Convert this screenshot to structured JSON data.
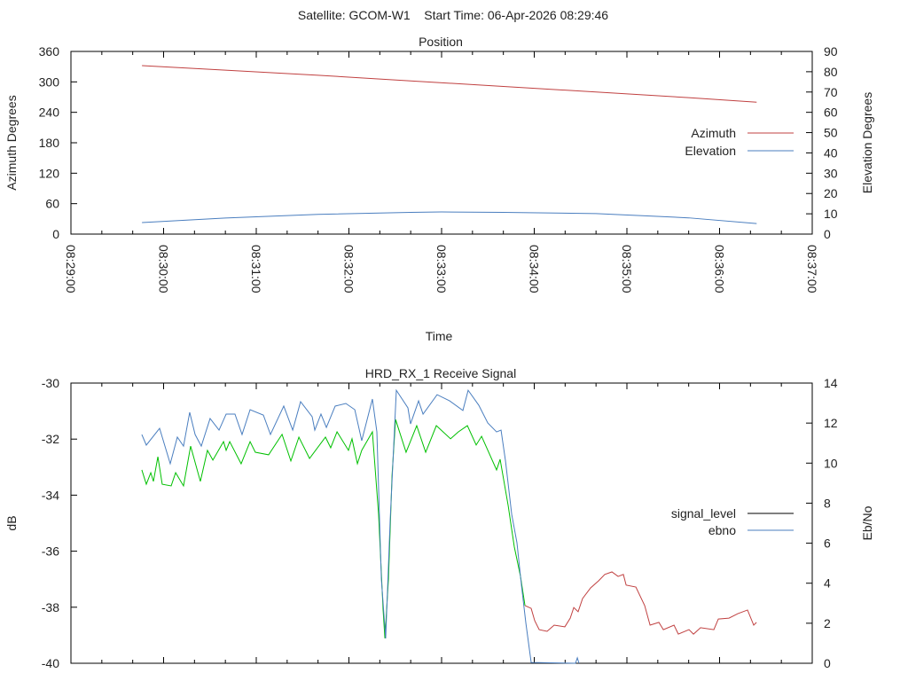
{
  "header": {
    "title": "Satellite: GCOM-W1    Start Time: 06-Apr-2026 08:29:46"
  },
  "chart_data": [
    {
      "type": "line",
      "title": "Position",
      "xlabel": "Time",
      "ylabel": "Azimuth Degrees",
      "y2label": "Elevation Degrees",
      "xlim_seconds_after_08_29_00": [
        0,
        480
      ],
      "x_ticks": [
        "08:29:00",
        "08:30:00",
        "08:31:00",
        "08:32:00",
        "08:33:00",
        "08:34:00",
        "08:35:00",
        "08:36:00",
        "08:37:00"
      ],
      "ylim": [
        0,
        360
      ],
      "y_ticks": [
        "0",
        "60",
        "120",
        "180",
        "240",
        "300",
        "360"
      ],
      "y2lim": [
        0,
        90
      ],
      "y2_ticks": [
        "0",
        "10",
        "20",
        "30",
        "40",
        "50",
        "60",
        "70",
        "80",
        "90"
      ],
      "legend_position": "right",
      "series": [
        {
          "name": "Azimuth",
          "axis": "y1",
          "color": "#c04040",
          "x": [
            46,
            100,
            160,
            220,
            280,
            340,
            400,
            444
          ],
          "y": [
            332,
            323,
            313,
            302,
            291,
            280,
            269,
            260
          ]
        },
        {
          "name": "Elevation",
          "axis": "y2",
          "color": "#4a7ebf",
          "x": [
            46,
            100,
            160,
            220,
            240,
            280,
            340,
            400,
            444
          ],
          "y": [
            5.7,
            7.9,
            9.7,
            10.7,
            10.9,
            10.7,
            10.1,
            8.0,
            5.2
          ]
        }
      ]
    },
    {
      "type": "line",
      "title": "HRD_RX_1 Receive Signal",
      "ylabel": "dB",
      "y2label": "Eb/No",
      "xlim_seconds_after_08_29_00": [
        0,
        480
      ],
      "ylim": [
        -40,
        -30
      ],
      "y_ticks": [
        "-40",
        "-38",
        "-36",
        "-34",
        "-32",
        "-30"
      ],
      "y2lim": [
        0,
        14
      ],
      "y2_ticks": [
        "0",
        "2",
        "4",
        "6",
        "8",
        "10",
        "12",
        "14"
      ],
      "legend_position": "right",
      "series": [
        {
          "name": "signal_level",
          "axis": "y1",
          "legend_color": "#000000",
          "color": "#00c000",
          "tail_color": "#c04040",
          "tail_from": 294,
          "x": [
            45.9,
            48.8,
            51.7,
            53.4,
            56.3,
            59.1,
            64.9,
            67.8,
            72.9,
            77.5,
            83.8,
            88.4,
            91.9,
            98.8,
            100.5,
            102.8,
            110.2,
            116.0,
            119.4,
            128.0,
            136.7,
            142.4,
            147.6,
            154.5,
            164.8,
            168.2,
            172.3,
            179.7,
            182.0,
            185.5,
            188.3,
            195.2,
            199.2,
            202.1,
            203.3,
            205.6,
            207.9,
            210.2,
            217.0,
            223.9,
            229.7,
            236.6,
            245.8,
            250.9,
            256.7,
            262.4,
            265.9,
            275.6,
            277.9,
            283.1,
            287.1,
            291.1,
            294.0,
            298.0,
            300.3,
            303.2,
            308.3,
            312.9,
            319.8,
            323.3,
            325.6,
            328.4,
            331.3,
            336.5,
            341.6,
            345.7,
            350.3,
            354.3,
            357.7,
            359.5,
            365.8,
            371.5,
            375.0,
            380.7,
            383.6,
            390.5,
            393.3,
            400.2,
            403.1,
            407.7,
            416.3,
            419.2,
            426.1,
            431.8,
            438.1,
            442.1,
            443.9
          ],
          "y": [
            -33.1,
            -33.61,
            -33.2,
            -33.51,
            -32.63,
            -33.61,
            -33.67,
            -33.2,
            -33.67,
            -32.25,
            -33.51,
            -32.4,
            -32.75,
            -32.09,
            -32.4,
            -32.09,
            -32.88,
            -32.09,
            -32.47,
            -32.56,
            -31.83,
            -32.78,
            -31.93,
            -32.69,
            -31.93,
            -32.31,
            -31.74,
            -32.4,
            -31.99,
            -32.88,
            -32.4,
            -31.74,
            -34.68,
            -38.07,
            -39.11,
            -36.99,
            -33.32,
            -31.3,
            -32.47,
            -31.52,
            -32.47,
            -31.52,
            -31.99,
            -31.74,
            -31.52,
            -32.21,
            -31.9,
            -33.1,
            -32.72,
            -34.37,
            -35.85,
            -36.9,
            -37.94,
            -38.04,
            -38.48,
            -38.8,
            -38.86,
            -38.64,
            -38.7,
            -38.39,
            -38.01,
            -38.16,
            -37.69,
            -37.31,
            -37.06,
            -36.83,
            -36.74,
            -36.9,
            -36.83,
            -37.21,
            -37.28,
            -37.94,
            -38.64,
            -38.54,
            -38.8,
            -38.64,
            -38.96,
            -38.8,
            -38.96,
            -38.73,
            -38.8,
            -38.42,
            -38.39,
            -38.23,
            -38.1,
            -38.64,
            -38.54
          ]
        },
        {
          "name": "ebno",
          "axis": "y2",
          "legend_color": "#4a7ebf",
          "color": "#4a7ebf",
          "x": [
            45.9,
            48.8,
            57.4,
            64.3,
            68.9,
            72.9,
            76.9,
            80.4,
            84.4,
            90.1,
            95.9,
            100.5,
            106.2,
            110.8,
            116.0,
            124.6,
            129.2,
            137.8,
            143.6,
            148.7,
            156.2,
            157.9,
            161.9,
            165.4,
            171.1,
            178.0,
            183.8,
            188.3,
            195.2,
            198.1,
            201.0,
            203.8,
            206.7,
            210.7,
            218.2,
            219.9,
            225.1,
            228.0,
            237.1,
            245.2,
            253.8,
            257.2,
            264.1,
            269.9,
            275.6,
            278.5,
            281.4,
            285.4,
            288.8,
            291.7,
            294.6,
            298.0,
            326.7,
            327.9,
            329.0
          ],
          "y": [
            11.43,
            10.9,
            11.74,
            9.97,
            11.3,
            10.85,
            12.54,
            11.43,
            10.85,
            12.23,
            11.65,
            12.45,
            12.45,
            11.43,
            12.67,
            12.4,
            11.43,
            12.85,
            11.65,
            13.07,
            12.32,
            11.65,
            12.45,
            11.78,
            12.85,
            12.98,
            12.67,
            11.12,
            13.2,
            11.56,
            4.21,
            1.24,
            7.13,
            13.64,
            12.76,
            11.96,
            13.11,
            12.45,
            13.42,
            13.11,
            12.63,
            13.64,
            12.89,
            12.01,
            11.56,
            11.65,
            10.1,
            7.44,
            6.02,
            3.9,
            1.99,
            0.04,
            0,
            0.27,
            0
          ]
        }
      ]
    }
  ]
}
